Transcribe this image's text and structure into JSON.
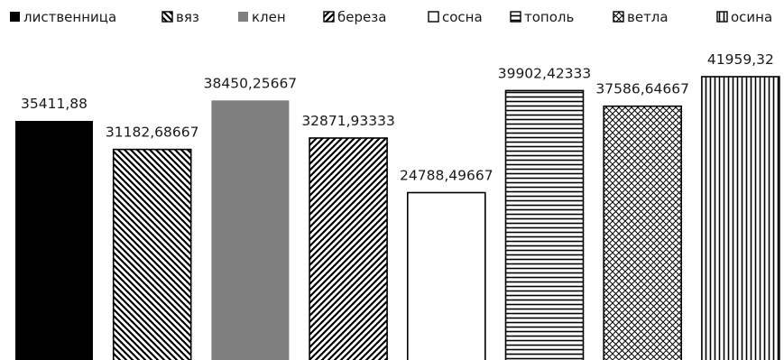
{
  "chart_data": {
    "type": "bar",
    "categories": [
      "лиственница",
      "вяз",
      "клен",
      "береза",
      "сосна",
      "тополь",
      "ветла",
      "осина"
    ],
    "values": [
      35411.88,
      31182.68667,
      38450.25667,
      32871.93333,
      24788.49667,
      39902.42333,
      37586.64667,
      41959.32
    ],
    "value_labels": [
      "35411,88",
      "31182,68667",
      "38450,25667",
      "32871,93333",
      "24788,49667",
      "39902,42333",
      "37586,64667",
      "41959,32"
    ],
    "patterns": [
      "solid-black",
      "diagonal-down",
      "solid-gray",
      "diagonal-up",
      "empty",
      "horizontal",
      "crosshatch",
      "vertical"
    ],
    "colors": {
      "black": "#000000",
      "gray": "#7f7f7f",
      "stroke": "#000000",
      "background": "#ffffff"
    },
    "legend_position": "top",
    "grid": false,
    "title": "",
    "xlabel": "",
    "ylabel": ""
  }
}
